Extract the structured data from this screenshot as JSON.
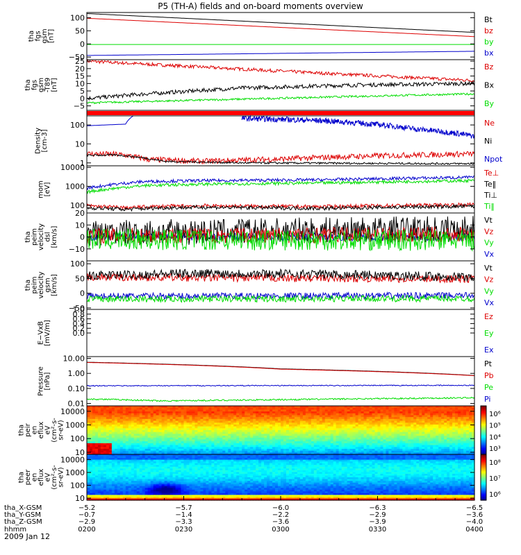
{
  "chart_data": {
    "title": "P5 (TH-A) fields and on-board moments overview",
    "date": "2009 Jan 12",
    "colors": {
      "black": "#000000",
      "red": "#dd0000",
      "green": "#00dd00",
      "blue": "#0000cc",
      "orange": "#ff0000"
    },
    "panels": [
      {
        "type": "line",
        "ylabel": [
          "tha",
          "fgs",
          "gsm",
          "[nT]"
        ],
        "ylim": [
          -60,
          120
        ],
        "ticks": [
          100,
          50,
          0,
          -50
        ],
        "tick_labels": [
          "100",
          "50",
          "0",
          "−50"
        ],
        "legend": [
          {
            "label": "Bt",
            "color": "#000000"
          },
          {
            "label": "bz",
            "color": "#dd0000"
          },
          {
            "label": "by",
            "color": "#00dd00"
          },
          {
            "label": "bx",
            "color": "#0000cc"
          }
        ],
        "series": [
          {
            "color": "#000000",
            "x": [
              0,
              0.5,
              1
            ],
            "y": [
              116,
              80,
              44
            ],
            "noise": 0
          },
          {
            "color": "#dd0000",
            "x": [
              0,
              0.5,
              1
            ],
            "y": [
              98,
              63,
              28
            ],
            "noise": 0
          },
          {
            "color": "#00dd00",
            "x": [
              0,
              1
            ],
            "y": [
              -2,
              -2
            ],
            "noise": 0
          },
          {
            "color": "#0000cc",
            "x": [
              0,
              0.5,
              1
            ],
            "y": [
              -44,
              -36,
              -28
            ],
            "noise": 0
          }
        ]
      },
      {
        "type": "line",
        "ylabel": [
          "tha",
          "fgs",
          "gsm",
          "-T89",
          "[nT]"
        ],
        "ylim": [
          -8,
          26
        ],
        "ticks": [
          25,
          20,
          15,
          10,
          5,
          0,
          -5
        ],
        "tick_labels": [
          "25",
          "20",
          "15",
          "10",
          "5",
          "0",
          "−5"
        ],
        "legend": [
          {
            "label": "Bz",
            "color": "#dd0000"
          },
          {
            "label": "Bx",
            "color": "#000000"
          },
          {
            "label": "By",
            "color": "#00dd00"
          }
        ],
        "series": [
          {
            "color": "#dd0000",
            "x": [
              0,
              0.3,
              0.6,
              1
            ],
            "y": [
              25,
              21,
              17,
              12
            ],
            "noise": 0.5
          },
          {
            "color": "#000000",
            "x": [
              0,
              0.15,
              0.4,
              0.7,
              1
            ],
            "y": [
              0,
              3,
              7,
              9,
              10
            ],
            "noise": 0.6
          },
          {
            "color": "#00dd00",
            "x": [
              0,
              0.4,
              0.8,
              1
            ],
            "y": [
              -3,
              -0.5,
              2,
              3
            ],
            "noise": 0.3
          }
        ]
      },
      {
        "type": "bar"
      },
      {
        "type": "line",
        "log": true,
        "ylabel": [
          "Density",
          "[cm-3]"
        ],
        "ylim": [
          0.7,
          300
        ],
        "ticks": [
          100,
          10,
          1
        ],
        "tick_labels": [
          "100",
          "10",
          "1"
        ],
        "legend": [
          {
            "label": "Ne",
            "color": "#dd0000"
          },
          {
            "label": "Ni",
            "color": "#000000"
          },
          {
            "label": "Npot",
            "color": "#0000cc"
          }
        ],
        "series": [
          {
            "color": "#dd0000",
            "x": [
              0,
              0.08,
              0.16,
              0.3,
              0.5,
              0.7,
              1
            ],
            "y": [
              3,
              2.8,
              1.5,
              1.2,
              1.6,
              2.2,
              3
            ],
            "noise": 0.15
          },
          {
            "color": "#000000",
            "x": [
              0,
              0.08,
              0.2,
              0.4,
              1
            ],
            "y": [
              2.5,
              2.6,
              1.2,
              1,
              0.9
            ],
            "noise": 0.05
          },
          {
            "color": "#0000cc",
            "x": [
              0,
              0.1,
              0.13
            ],
            "y": [
              90,
              110,
              400
            ],
            "noise": 0
          },
          {
            "color": "#0000cc",
            "x": [
              0.4,
              0.6,
              0.85,
              1
            ],
            "y": [
              220,
              170,
              60,
              25
            ],
            "noise": 0.15
          }
        ]
      },
      {
        "type": "line",
        "log": true,
        "ylabel": [
          "mom",
          "[eV]"
        ],
        "ylim": [
          40,
          12000
        ],
        "ticks": [
          10000,
          1000,
          100
        ],
        "tick_labels": [
          "10000",
          "1000",
          "100"
        ],
        "legend": [
          {
            "label": "Te⊥",
            "color": "#dd0000"
          },
          {
            "label": "Te‖",
            "color": "#000000"
          },
          {
            "label": "Ti⊥",
            "color": "#000000"
          },
          {
            "label": "Ti‖",
            "color": "#00dd00"
          }
        ],
        "series": [
          {
            "color": "#0000cc",
            "x": [
              0,
              0.15,
              0.3,
              0.6,
              1
            ],
            "y": [
              800,
              1800,
              2000,
              2200,
              3000
            ],
            "noise": 0.08
          },
          {
            "color": "#00dd00",
            "x": [
              0,
              0.15,
              0.3,
              0.6,
              1
            ],
            "y": [
              500,
              1100,
              1300,
              1500,
              2000
            ],
            "noise": 0.08
          },
          {
            "color": "#dd0000",
            "x": [
              0,
              0.1,
              0.2,
              0.3,
              0.6,
              1
            ],
            "y": [
              95,
              75,
              90,
              95,
              85,
              110
            ],
            "noise": 0.1
          },
          {
            "color": "#000000",
            "x": [
              0,
              0.1,
              0.2,
              0.3,
              0.6,
              1
            ],
            "y": [
              75,
              62,
              75,
              80,
              70,
              90
            ],
            "noise": 0.1
          }
        ]
      },
      {
        "type": "line",
        "ylabel": [
          "tha",
          "peim",
          "velocity",
          "dsl",
          "[km/s]"
        ],
        "ylim": [
          -20,
          20
        ],
        "ticks": [
          20,
          10,
          0,
          -10
        ],
        "tick_labels": [
          "20",
          "10",
          "0",
          "−10"
        ],
        "legend": [
          {
            "label": "Vt",
            "color": "#000000"
          },
          {
            "label": "Vz",
            "color": "#dd0000"
          },
          {
            "label": "Vy",
            "color": "#00dd00"
          },
          {
            "label": "Vx",
            "color": "#0000cc"
          }
        ],
        "series": [
          {
            "color": "#0000cc",
            "x": [
              0,
              1
            ],
            "y": [
              0,
              0
            ],
            "noise": 1.5
          },
          {
            "color": "#000000",
            "x": [
              0,
              1
            ],
            "y": [
              3,
              7
            ],
            "noise": 5
          },
          {
            "color": "#dd0000",
            "x": [
              0,
              1
            ],
            "y": [
              1,
              2
            ],
            "noise": 3
          },
          {
            "color": "#00dd00",
            "x": [
              0,
              1
            ],
            "y": [
              -2,
              -3
            ],
            "noise": 4
          }
        ]
      },
      {
        "type": "line",
        "ylabel": [
          "tha",
          "peim",
          "velocity",
          "gsm",
          "[km/s]"
        ],
        "ylim": [
          -55,
          110
        ],
        "ticks": [
          100,
          50,
          0,
          -50
        ],
        "tick_labels": [
          "100",
          "50",
          "0",
          "−50"
        ],
        "legend": [
          {
            "label": "Vt",
            "color": "#000000"
          },
          {
            "label": "Vz",
            "color": "#dd0000"
          },
          {
            "label": "Vy",
            "color": "#00dd00"
          },
          {
            "label": "Vx",
            "color": "#0000cc"
          }
        ],
        "series": [
          {
            "color": "#dd0000",
            "x": [
              0,
              1
            ],
            "y": [
              55,
              48
            ],
            "noise": 6
          },
          {
            "color": "#000000",
            "x": [
              0,
              0.3,
              0.6,
              1
            ],
            "y": [
              60,
              68,
              65,
              55
            ],
            "noise": 7
          },
          {
            "color": "#0000cc",
            "x": [
              0,
              1
            ],
            "y": [
              -10,
              -8
            ],
            "noise": 5
          },
          {
            "color": "#00dd00",
            "x": [
              0,
              1
            ],
            "y": [
              -20,
              -18
            ],
            "noise": 5
          }
        ]
      },
      {
        "type": "empty",
        "ylabel": [
          "E−VxB",
          "[mV/m]"
        ],
        "ylim": [
          -1,
          1
        ],
        "ticks": [
          1,
          0.8,
          0.6,
          0.4,
          0.2,
          0
        ],
        "tick_labels": [
          "1.0",
          "0.8",
          "0.6",
          "0.4",
          "0.2",
          "0.0"
        ],
        "legend": [
          {
            "label": "Ez",
            "color": "#dd0000"
          },
          {
            "label": "Ey",
            "color": "#00dd00"
          },
          {
            "label": "Ex",
            "color": "#0000cc"
          }
        ]
      },
      {
        "type": "line",
        "log": true,
        "ylabel": [
          "Pressure",
          "[nPa]"
        ],
        "ylim": [
          0.007,
          13
        ],
        "ticks": [
          10,
          1,
          0.1,
          0.01
        ],
        "tick_labels": [
          "10.00",
          "1.00",
          "0.10",
          "0.01"
        ],
        "legend": [
          {
            "label": "Pt",
            "color": "#000000"
          },
          {
            "label": "Pb",
            "color": "#dd0000"
          },
          {
            "label": "Pe",
            "color": "#00dd00"
          },
          {
            "label": "Pi",
            "color": "#0000cc"
          }
        ],
        "series": [
          {
            "color": "#000000",
            "x": [
              0,
              0.5,
              1
            ],
            "y": [
              5.5,
              2,
              0.72
            ],
            "noise": 0
          },
          {
            "color": "#dd0000",
            "x": [
              0,
              0.5,
              1
            ],
            "y": [
              5.3,
              1.9,
              0.7
            ],
            "noise": 0
          },
          {
            "color": "#0000cc",
            "x": [
              0,
              1
            ],
            "y": [
              0.15,
              0.16
            ],
            "noise": 0.03
          },
          {
            "color": "#00dd00",
            "x": [
              0,
              0.2,
              0.5,
              1
            ],
            "y": [
              0.02,
              0.015,
              0.018,
              0.024
            ],
            "noise": 0.05
          }
        ]
      },
      {
        "type": "heatmap",
        "variant": "ion",
        "log": true,
        "ylabel": [
          "tha",
          "peir",
          "en",
          "eflux",
          "eV",
          "(cm²-s-",
          "sr-eV)"
        ],
        "ylim": [
          7,
          25000
        ],
        "ticks": [
          10000,
          1000,
          100,
          10
        ],
        "tick_labels": [
          "10000",
          "1000",
          "100",
          "10"
        ],
        "colorbar_labels": [
          "10⁶",
          "10⁵",
          "10⁴",
          "10³"
        ]
      },
      {
        "type": "heatmap",
        "variant": "electron",
        "log": true,
        "ylabel": [
          "tha",
          "peer",
          "en",
          "eflux",
          "eV",
          "(cm²-s-",
          "sr-eV)"
        ],
        "ylim": [
          7,
          25000
        ],
        "ticks": [
          10000,
          1000,
          100,
          10
        ],
        "tick_labels": [
          "10000",
          "1000",
          "100",
          "10"
        ],
        "colorbar_labels": [
          "10⁸",
          "10⁷",
          "10⁶"
        ]
      }
    ],
    "xaxis": {
      "time": [
        "0200",
        "0230",
        "0300",
        "0330",
        "0400"
      ],
      "rows": [
        {
          "label": "tha_X-GSM",
          "values": [
            "−5.2",
            "−5.7",
            "−6.0",
            "−6.3",
            "−6.5"
          ]
        },
        {
          "label": "tha_Y-GSM",
          "values": [
            "−0.7",
            "−1.4",
            "−2.2",
            "−2.9",
            "−3.6"
          ]
        },
        {
          "label": "tha_Z-GSM",
          "values": [
            "−2.9",
            "−3.3",
            "−3.6",
            "−3.9",
            "−4.0"
          ]
        },
        {
          "label": "hhmm",
          "values": []
        }
      ]
    }
  }
}
